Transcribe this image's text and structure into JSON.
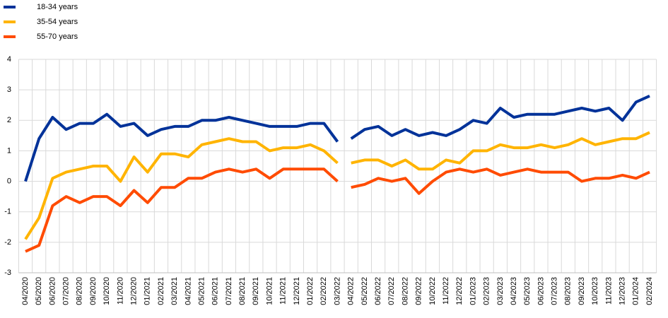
{
  "chart_data": {
    "type": "line",
    "categories": [
      "04/2020",
      "05/2020",
      "06/2020",
      "07/2020",
      "08/2020",
      "09/2020",
      "10/2020",
      "11/2020",
      "12/2020",
      "01/2021",
      "02/2021",
      "03/2021",
      "04/2021",
      "05/2021",
      "06/2021",
      "07/2021",
      "08/2021",
      "09/2021",
      "10/2021",
      "11/2021",
      "12/2021",
      "01/2022",
      "02/2022",
      "03/2022",
      "04/2022",
      "05/2022",
      "06/2022",
      "07/2022",
      "08/2022",
      "09/2022",
      "10/2022",
      "11/2022",
      "12/2022",
      "01/2023",
      "02/2023",
      "03/2023",
      "04/2023",
      "05/2023",
      "06/2023",
      "07/2023",
      "08/2023",
      "09/2023",
      "10/2023",
      "11/2023",
      "12/2023",
      "01/2024",
      "02/2024"
    ],
    "series": [
      {
        "name": "18-34  years",
        "color": "#003299",
        "values": [
          0,
          1.4,
          2.1,
          1.7,
          1.9,
          1.9,
          2.2,
          1.8,
          1.9,
          1.5,
          1.7,
          1.8,
          1.8,
          2.0,
          2.0,
          2.1,
          2.0,
          1.9,
          1.8,
          1.8,
          1.8,
          1.9,
          1.9,
          1.3,
          1.4,
          1.7,
          1.8,
          1.5,
          1.7,
          1.5,
          1.6,
          1.5,
          1.7,
          2.0,
          1.9,
          2.4,
          2.1,
          2.2,
          2.2,
          2.2,
          2.3,
          2.4,
          2.3,
          2.4,
          2.0,
          2.6,
          2.8
        ]
      },
      {
        "name": "35-54  years",
        "color": "#ffb400",
        "values": [
          -1.9,
          -1.2,
          0.1,
          0.3,
          0.4,
          0.5,
          0.5,
          0.0,
          0.8,
          0.3,
          0.9,
          0.9,
          0.8,
          1.2,
          1.3,
          1.4,
          1.3,
          1.3,
          1.0,
          1.1,
          1.1,
          1.2,
          1.0,
          0.6,
          0.6,
          0.7,
          0.7,
          0.5,
          0.7,
          0.4,
          0.4,
          0.7,
          0.6,
          1.0,
          1.0,
          1.2,
          1.1,
          1.1,
          1.2,
          1.1,
          1.2,
          1.4,
          1.2,
          1.3,
          1.4,
          1.4,
          1.6
        ]
      },
      {
        "name": "55-70  years",
        "color": "#ff4b00",
        "values": [
          -2.3,
          -2.1,
          -0.8,
          -0.5,
          -0.7,
          -0.5,
          -0.5,
          -0.8,
          -0.3,
          -0.7,
          -0.2,
          -0.2,
          0.1,
          0.1,
          0.3,
          0.4,
          0.3,
          0.4,
          0.1,
          0.4,
          0.4,
          0.4,
          0.4,
          0.0,
          -0.2,
          -0.1,
          0.1,
          0.0,
          0.1,
          -0.4,
          0.0,
          0.3,
          0.4,
          0.3,
          0.4,
          0.2,
          0.3,
          0.4,
          0.3,
          0.3,
          0.3,
          0.0,
          0.1,
          0.1,
          0.2,
          0.1,
          0.3
        ]
      }
    ],
    "line_break_before": "04/2022",
    "ylim": [
      -3,
      4
    ],
    "yticks": [
      -3,
      -2,
      -1,
      0,
      1,
      2,
      3,
      4
    ],
    "grid": true,
    "legend": "top-left"
  }
}
